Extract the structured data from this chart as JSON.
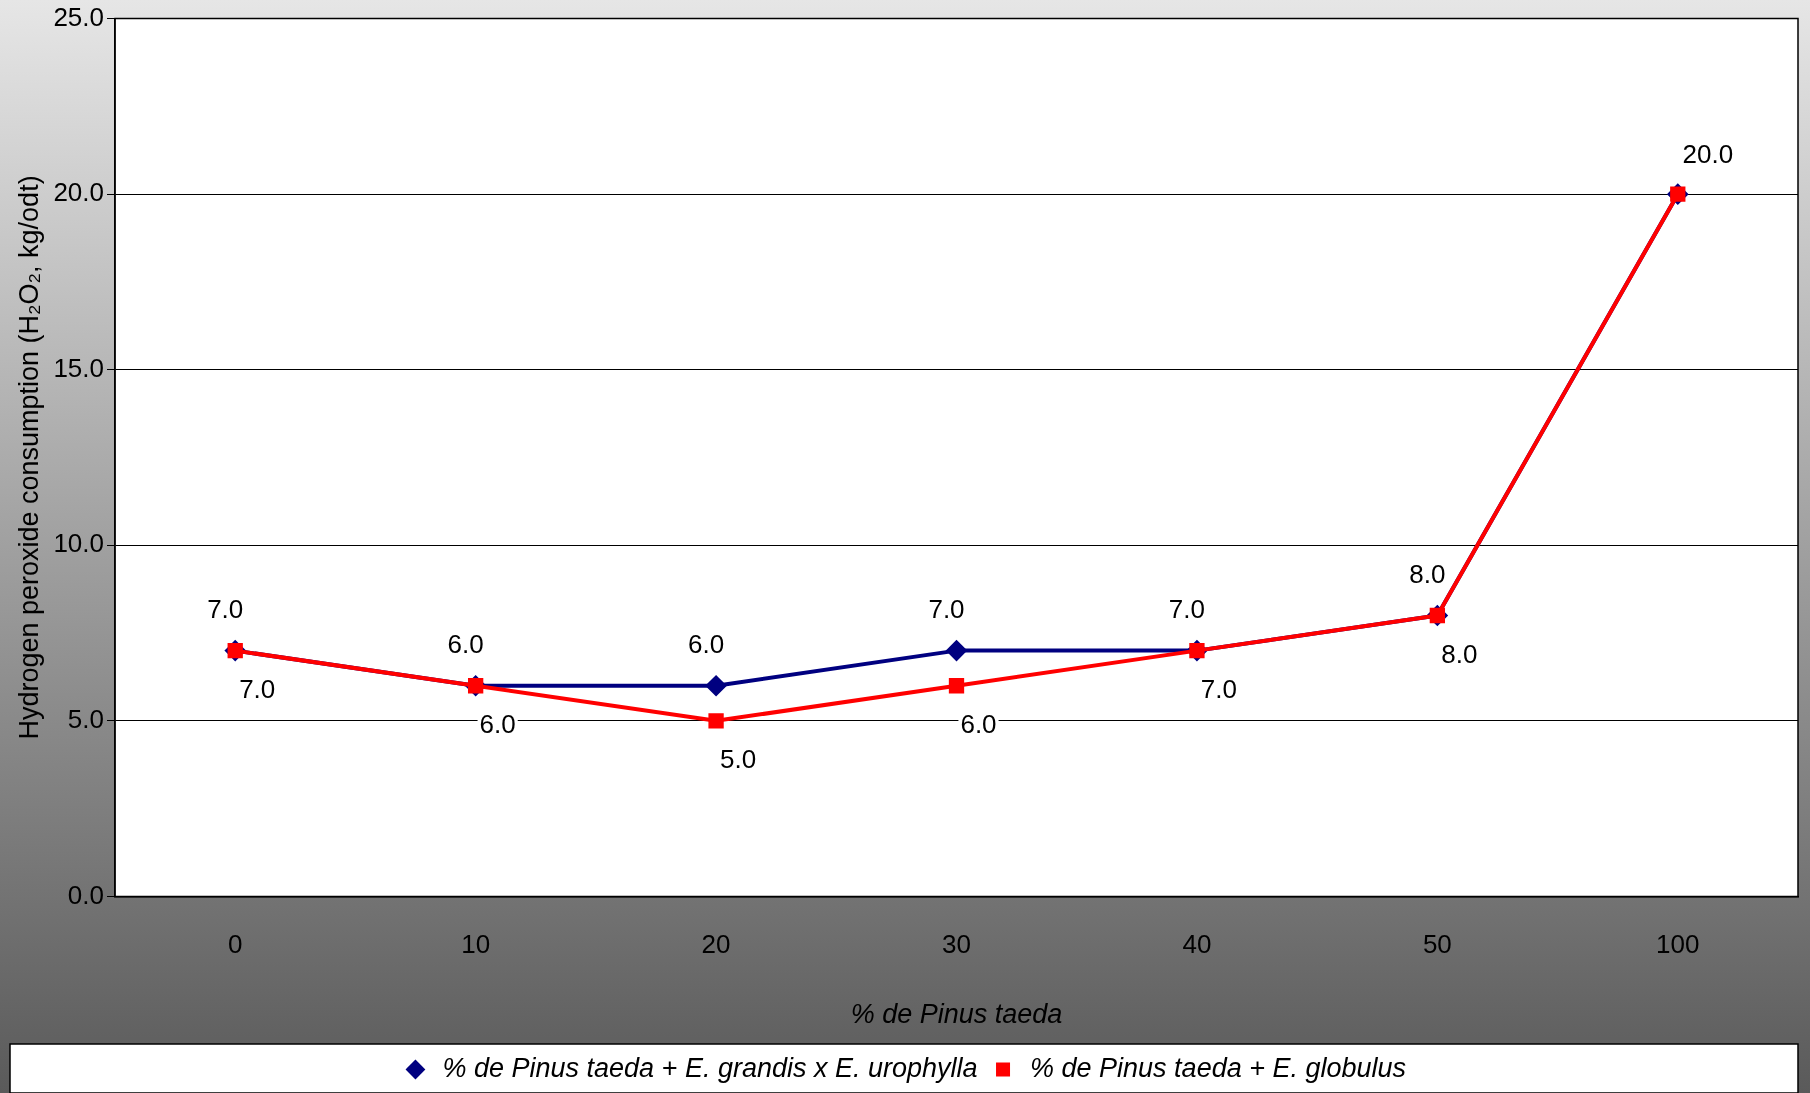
{
  "chart_data": {
    "type": "line",
    "xlabel": "% de Pinus taeda",
    "ylabel": "Hydrogen peroxide consumption (H₂O₂, kg/odt)",
    "categories": [
      "0",
      "10",
      "20",
      "30",
      "40",
      "50",
      "100"
    ],
    "series": [
      {
        "name": "% de Pinus taeda + E. grandis x E. urophylla",
        "color": "#000080",
        "marker": "diamond",
        "values": [
          7.0,
          6.0,
          6.0,
          7.0,
          7.0,
          8.0,
          20.0
        ],
        "value_labels": [
          "7.0",
          "6.0",
          "6.0",
          "7.0",
          "7.0",
          "8.0",
          null
        ]
      },
      {
        "name": "% de Pinus taeda + E. globulus",
        "color": "#ff0000",
        "marker": "square",
        "values": [
          7.0,
          6.0,
          5.0,
          6.0,
          7.0,
          8.0,
          20.0
        ],
        "value_labels": [
          "7.0",
          "6.0",
          "5.0",
          "6.0",
          "7.0",
          "8.0",
          "20.0"
        ]
      }
    ],
    "ylim": [
      0,
      25
    ],
    "yticks": [
      {
        "value": 0,
        "label": "0.0"
      },
      {
        "value": 5,
        "label": "5.0"
      },
      {
        "value": 10,
        "label": "10.0"
      },
      {
        "value": 15,
        "label": "15.0"
      },
      {
        "value": 20,
        "label": "20.0"
      },
      {
        "value": 25,
        "label": "25.0"
      }
    ],
    "grid": "y",
    "legend": "bottom",
    "line_style": "solid"
  }
}
